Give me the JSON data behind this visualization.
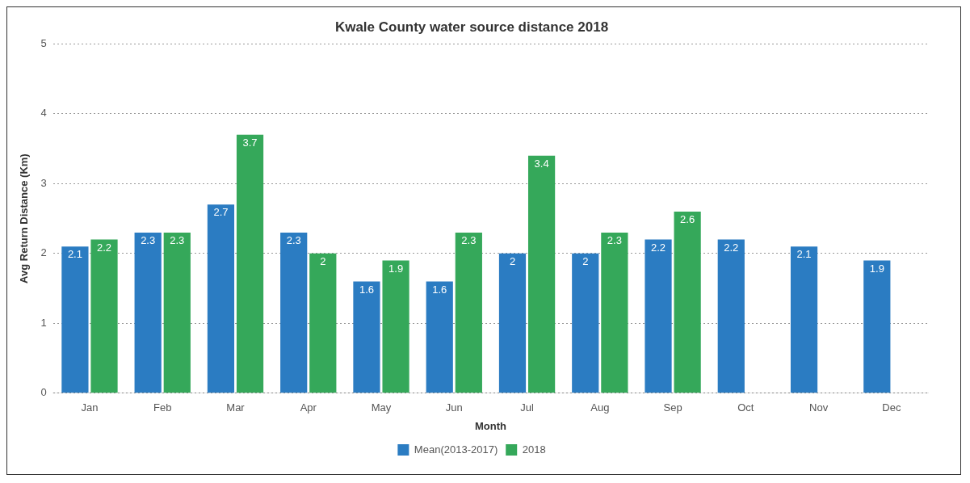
{
  "chart_data": {
    "type": "bar",
    "title": "Kwale County water source distance 2018",
    "xlabel": "Month",
    "ylabel": "Avg Return Distance (Km)",
    "categories": [
      "Jan",
      "Feb",
      "Mar",
      "Apr",
      "May",
      "Jun",
      "Jul",
      "Aug",
      "Sep",
      "Oct",
      "Nov",
      "Dec"
    ],
    "series": [
      {
        "name": "Mean(2013-2017)",
        "color": "#2b7cc2",
        "values": [
          2.1,
          2.3,
          2.7,
          2.3,
          1.6,
          1.6,
          2,
          2,
          2.2,
          2.2,
          2.1,
          1.9
        ]
      },
      {
        "name": "2018",
        "color": "#35a85a",
        "values": [
          2.2,
          2.3,
          3.7,
          2,
          1.9,
          2.3,
          3.4,
          2.3,
          2.6,
          null,
          null,
          null
        ]
      }
    ],
    "ylim": [
      0,
      5
    ],
    "yticks": [
      0,
      1,
      2,
      3,
      4,
      5
    ],
    "grid": "y",
    "legend": "bottom",
    "data_labels": true
  }
}
